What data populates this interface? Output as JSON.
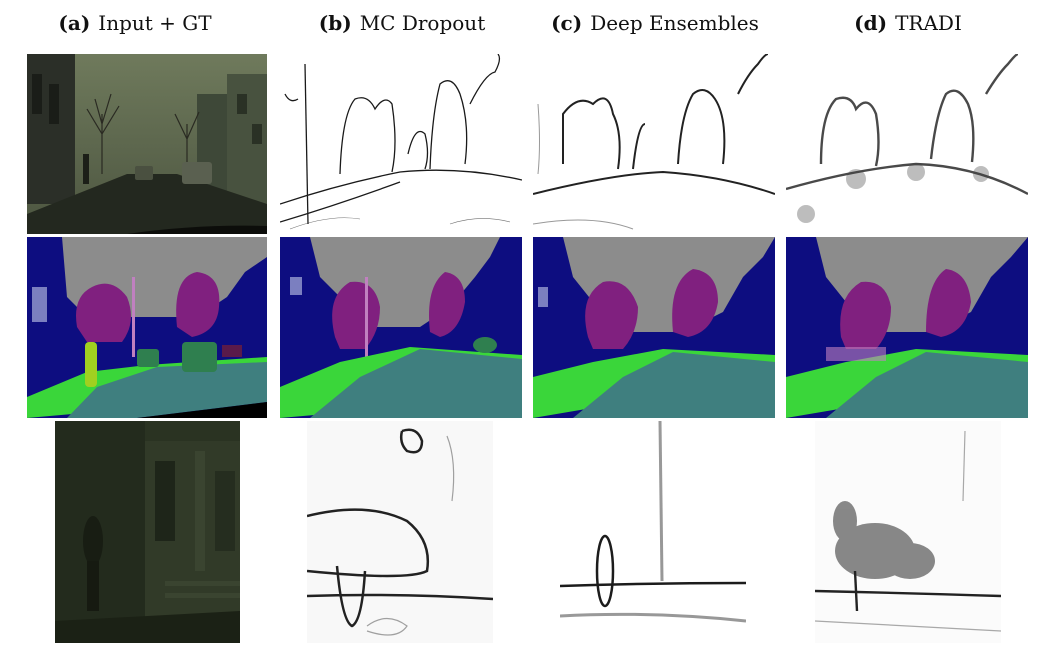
{
  "columns": [
    {
      "tag": "(a)",
      "label": "Input + GT"
    },
    {
      "tag": "(b)",
      "label": "MC Dropout"
    },
    {
      "tag": "(c)",
      "label": "Deep Ensembles"
    },
    {
      "tag": "(d)",
      "label": "TRADI"
    }
  ],
  "rows": [
    {
      "panels": [
        "input-street-photo",
        "mc-dropout-uncertainty-map",
        "deep-ensembles-uncertainty-map",
        "tradi-uncertainty-map"
      ]
    },
    {
      "panels": [
        "ground-truth-segmentation",
        "mc-dropout-segmentation",
        "deep-ensembles-segmentation",
        "tradi-segmentation"
      ]
    },
    {
      "panels": [
        "input-crop-photo",
        "mc-dropout-crop-uncertainty",
        "deep-ensembles-crop-uncertainty",
        "tradi-crop-uncertainty"
      ]
    }
  ],
  "colors": {
    "sky": "#8c8c8c",
    "building": "#0d0d80",
    "vegetation": "#80207f",
    "road": "#3f7f7f",
    "sidewalk": "#3ad63a",
    "pole": "#c080c0",
    "car": "#2f7f4f",
    "person": "#a0d020",
    "photo_dark": "#2a3322"
  }
}
